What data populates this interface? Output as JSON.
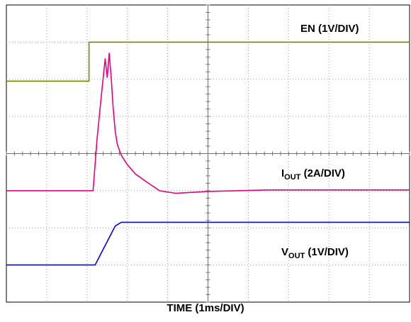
{
  "chart_data": {
    "type": "line",
    "title": "",
    "xlabel": "TIME (1ms/DIV)",
    "grid": true,
    "x_divisions": 10,
    "y_divisions": 8,
    "series": [
      {
        "name": "EN (1V/DIV)",
        "name_main": "EN",
        "name_sub": "",
        "name_scale": " (1V/DIV)",
        "color": "#808000",
        "x": [
          0.0,
          2.05,
          2.05,
          10.0
        ],
        "y": [
          -2.05,
          -2.05,
          -1.0,
          -1.0
        ]
      },
      {
        "name": "IOUT (2A/DIV)",
        "name_main": "I",
        "name_sub": "OUT",
        "name_scale": " (2A/DIV)",
        "color": "#e8007c",
        "x": [
          0.0,
          2.15,
          2.25,
          2.35,
          2.45,
          2.5,
          2.55,
          2.6,
          2.65,
          2.7,
          2.75,
          2.85,
          3.0,
          3.2,
          3.5,
          3.8,
          4.2,
          5.0,
          6.5,
          8.0,
          10.0
        ],
        "y": [
          -5.0,
          -5.0,
          -3.6,
          -2.5,
          -1.45,
          -1.95,
          -1.3,
          -1.95,
          -2.8,
          -3.4,
          -3.75,
          -4.05,
          -4.3,
          -4.55,
          -4.78,
          -5.0,
          -5.07,
          -5.02,
          -4.98,
          -4.98,
          -4.98
        ]
      },
      {
        "name": "VOUT (1V/DIV)",
        "name_main": "V",
        "name_sub": "OUT",
        "name_scale": " (1V/DIV)",
        "color": "#0000ff",
        "x": [
          0.0,
          2.2,
          2.7,
          2.85,
          10.0
        ],
        "y": [
          -7.0,
          -7.0,
          -5.95,
          -5.85,
          -5.85
        ]
      }
    ]
  }
}
